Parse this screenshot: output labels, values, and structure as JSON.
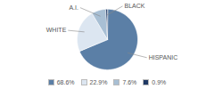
{
  "chart_data": {
    "type": "pie",
    "categories": [
      "HISPANIC",
      "WHITE",
      "A.I.",
      "BLACK"
    ],
    "values": [
      68.6,
      22.9,
      7.6,
      0.9
    ],
    "value_labels": [
      "68.6%",
      "22.9%",
      "7.6%",
      "0.9%"
    ],
    "colors": [
      "#5b7fa6",
      "#dce6f1",
      "#a8bfd4",
      "#1f3864"
    ],
    "legend": "bottom"
  }
}
